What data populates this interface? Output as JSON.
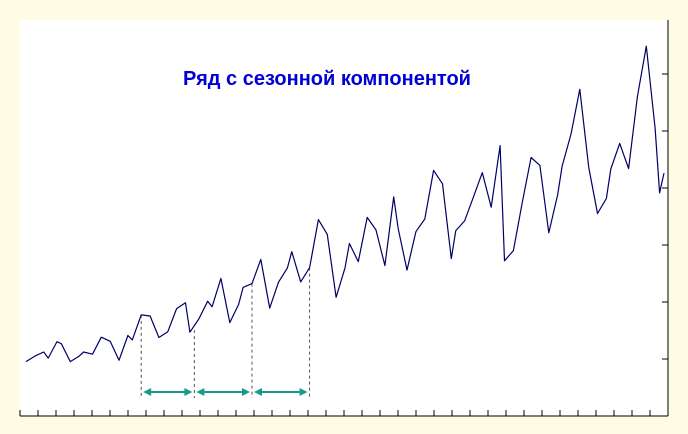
{
  "chart_data": {
    "type": "line",
    "title": "Ряд с сезонной компонентой",
    "xlabel": "",
    "ylabel": "",
    "grid": false,
    "legend": "none",
    "xlim": [
      0,
      144
    ],
    "ylim": [
      0,
      100
    ],
    "x_ticks": [
      0,
      4,
      8,
      12,
      16,
      20,
      24,
      28,
      32,
      36,
      40,
      44,
      48,
      52,
      56,
      60,
      64,
      68,
      72,
      76,
      80,
      84,
      88,
      92,
      96,
      100,
      104,
      108,
      112,
      116,
      120,
      124,
      128,
      132,
      136,
      140,
      144
    ],
    "y_ticks": [
      0,
      17,
      34,
      51,
      68,
      85,
      100
    ],
    "series": [
      {
        "color": "#000066",
        "x": [
          0,
          2,
          4,
          5,
          7,
          8,
          10,
          12,
          13,
          15,
          17,
          19,
          21,
          23,
          24,
          26,
          28,
          30,
          32,
          34,
          36,
          37,
          39,
          41,
          42,
          44,
          46,
          48,
          49,
          51,
          53,
          55,
          57,
          59,
          60,
          62,
          64,
          66,
          68,
          70,
          72,
          73,
          75,
          77,
          79,
          81,
          83,
          84,
          86,
          88,
          90,
          92,
          94,
          96,
          97,
          99,
          101,
          103,
          105,
          107,
          108,
          110,
          112,
          114,
          116,
          118,
          120,
          121,
          123,
          125,
          127,
          129,
          131,
          132,
          134,
          136,
          138,
          140,
          142,
          143,
          144
        ],
        "y": [
          9.6,
          11.6,
          13.1,
          10.9,
          16.9,
          16.1,
          9.6,
          11.6,
          13.1,
          12.3,
          18.5,
          17.0,
          10.1,
          19.1,
          17.5,
          26.6,
          26.2,
          18.4,
          20.5,
          28.9,
          31.0,
          20.3,
          25.1,
          31.6,
          29.6,
          39.9,
          23.8,
          30.5,
          36.6,
          38.0,
          46.8,
          29.1,
          38.5,
          43.7,
          49.6,
          38.6,
          43.8,
          61.3,
          55.9,
          33.0,
          43.7,
          52.6,
          46.0,
          62.1,
          57.5,
          44.6,
          69.5,
          58.0,
          42.9,
          56.9,
          61.5,
          79.2,
          74.3,
          47.1,
          57.3,
          60.8,
          69.6,
          78.4,
          65.8,
          88.2,
          46.3,
          50.0,
          67.4,
          83.9,
          81.0,
          56.5,
          70.4,
          80.7,
          92.4,
          108.7,
          80.4,
          63.5,
          69.0,
          79.7,
          89.0,
          79.9,
          106.0,
          124.4,
          94.6,
          71.0,
          78.2
        ]
      }
    ],
    "annotations": {
      "season_markers_x": [
        26,
        38,
        51,
        64
      ],
      "season_arrows": [
        [
          26,
          38
        ],
        [
          38,
          51
        ],
        [
          51,
          64
        ]
      ]
    }
  }
}
